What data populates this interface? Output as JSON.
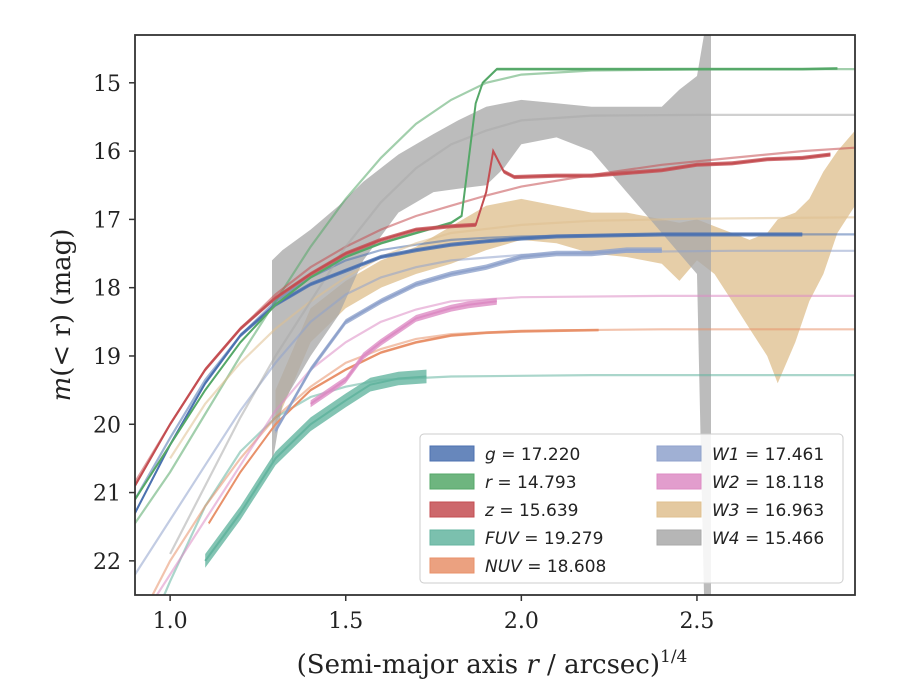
{
  "chart_data": {
    "type": "line",
    "title": "",
    "xlabel_main": "(Semi-major axis ",
    "xlabel_var": "r",
    "xlabel_rest": " / arcsec)",
    "xlabel_sup": "1/4",
    "ylabel_m": "m",
    "ylabel_arg": "(< r)",
    "ylabel_unit": " (mag)",
    "xlim": [
      0.9,
      2.95
    ],
    "ylim": [
      22.5,
      14.3
    ],
    "y_inverted": true,
    "xticks": [
      1.0,
      1.5,
      2.0,
      2.5
    ],
    "xtick_labels": [
      "1.0",
      "1.5",
      "2.0",
      "2.5"
    ],
    "yticks": [
      15,
      16,
      17,
      18,
      19,
      20,
      21,
      22
    ],
    "ytick_labels": [
      "15",
      "16",
      "17",
      "18",
      "19",
      "20",
      "21",
      "22"
    ],
    "grid": false,
    "legend_position": "lower-right",
    "series": [
      {
        "name": "g = 17.220",
        "var": "g",
        "value": "17.220",
        "color": "#4c72b0",
        "measured": [
          [
            0.9,
            21.3
          ],
          [
            1.0,
            20.3
          ],
          [
            1.1,
            19.4
          ],
          [
            1.2,
            18.7
          ],
          [
            1.3,
            18.25
          ],
          [
            1.4,
            17.95
          ],
          [
            1.5,
            17.75
          ],
          [
            1.6,
            17.55
          ],
          [
            1.7,
            17.45
          ],
          [
            1.8,
            17.37
          ],
          [
            1.9,
            17.32
          ],
          [
            2.0,
            17.28
          ],
          [
            2.1,
            17.25
          ],
          [
            2.2,
            17.24
          ],
          [
            2.3,
            17.23
          ],
          [
            2.4,
            17.22
          ],
          [
            2.5,
            17.22
          ],
          [
            2.6,
            17.22
          ],
          [
            2.7,
            17.22
          ],
          [
            2.8,
            17.22
          ]
        ],
        "measured_err": 0.03,
        "model": [
          [
            0.9,
            21.1
          ],
          [
            1.0,
            20.2
          ],
          [
            1.1,
            19.35
          ],
          [
            1.2,
            18.7
          ],
          [
            1.3,
            18.2
          ],
          [
            1.4,
            17.85
          ],
          [
            1.5,
            17.6
          ],
          [
            1.6,
            17.45
          ],
          [
            1.7,
            17.37
          ],
          [
            1.8,
            17.3
          ],
          [
            1.9,
            17.27
          ],
          [
            2.0,
            17.25
          ],
          [
            2.2,
            17.23
          ],
          [
            2.4,
            17.22
          ],
          [
            2.6,
            17.22
          ],
          [
            2.95,
            17.22
          ]
        ]
      },
      {
        "name": "r = 14.793",
        "var": "r",
        "value": "14.793",
        "color": "#55a868",
        "measured": [
          [
            0.9,
            21.1
          ],
          [
            1.0,
            20.3
          ],
          [
            1.1,
            19.5
          ],
          [
            1.2,
            18.8
          ],
          [
            1.3,
            18.25
          ],
          [
            1.4,
            17.85
          ],
          [
            1.5,
            17.55
          ],
          [
            1.6,
            17.35
          ],
          [
            1.7,
            17.2
          ],
          [
            1.8,
            17.05
          ],
          [
            1.83,
            16.95
          ],
          [
            1.87,
            15.3
          ],
          [
            1.89,
            15.0
          ],
          [
            1.93,
            14.8
          ],
          [
            2.0,
            14.8
          ],
          [
            2.2,
            14.8
          ],
          [
            2.4,
            14.8
          ],
          [
            2.6,
            14.8
          ],
          [
            2.8,
            14.8
          ],
          [
            2.9,
            14.79
          ]
        ],
        "measured_err": 0.02,
        "model": [
          [
            0.9,
            21.45
          ],
          [
            1.0,
            20.7
          ],
          [
            1.1,
            19.85
          ],
          [
            1.2,
            19.0
          ],
          [
            1.3,
            18.2
          ],
          [
            1.4,
            17.4
          ],
          [
            1.5,
            16.7
          ],
          [
            1.6,
            16.1
          ],
          [
            1.7,
            15.6
          ],
          [
            1.8,
            15.25
          ],
          [
            1.9,
            15.0
          ],
          [
            2.0,
            14.88
          ],
          [
            2.2,
            14.82
          ],
          [
            2.6,
            14.8
          ],
          [
            2.95,
            14.8
          ]
        ]
      },
      {
        "name": "z = 15.639",
        "var": "z",
        "value": "15.639",
        "color": "#c44e52",
        "measured": [
          [
            0.9,
            20.9
          ],
          [
            1.0,
            20.0
          ],
          [
            1.1,
            19.2
          ],
          [
            1.2,
            18.6
          ],
          [
            1.3,
            18.15
          ],
          [
            1.4,
            17.8
          ],
          [
            1.5,
            17.5
          ],
          [
            1.6,
            17.3
          ],
          [
            1.7,
            17.15
          ],
          [
            1.8,
            17.1
          ],
          [
            1.87,
            17.08
          ],
          [
            1.9,
            16.6
          ],
          [
            1.92,
            16.0
          ],
          [
            1.95,
            16.3
          ],
          [
            1.98,
            16.38
          ],
          [
            2.1,
            16.36
          ],
          [
            2.2,
            16.36
          ],
          [
            2.3,
            16.32
          ],
          [
            2.4,
            16.28
          ],
          [
            2.5,
            16.2
          ],
          [
            2.6,
            16.18
          ],
          [
            2.7,
            16.12
          ],
          [
            2.8,
            16.1
          ],
          [
            2.88,
            16.05
          ]
        ],
        "measured_err": 0.03,
        "model": [
          [
            0.9,
            20.85
          ],
          [
            1.0,
            20.0
          ],
          [
            1.1,
            19.2
          ],
          [
            1.2,
            18.6
          ],
          [
            1.3,
            18.1
          ],
          [
            1.4,
            17.7
          ],
          [
            1.5,
            17.4
          ],
          [
            1.6,
            17.15
          ],
          [
            1.7,
            16.95
          ],
          [
            1.8,
            16.8
          ],
          [
            1.9,
            16.65
          ],
          [
            2.0,
            16.52
          ],
          [
            2.2,
            16.35
          ],
          [
            2.4,
            16.2
          ],
          [
            2.6,
            16.1
          ],
          [
            2.8,
            16.0
          ],
          [
            2.95,
            15.95
          ]
        ]
      },
      {
        "name": "FUV = 19.279",
        "var": "FUV",
        "value": "19.279",
        "color": "#64b5a0",
        "measured": [
          [
            1.1,
            22.0
          ],
          [
            1.2,
            21.3
          ],
          [
            1.3,
            20.5
          ],
          [
            1.4,
            20.0
          ],
          [
            1.5,
            19.65
          ],
          [
            1.57,
            19.42
          ],
          [
            1.65,
            19.33
          ],
          [
            1.73,
            19.3
          ]
        ],
        "measured_err": 0.1,
        "model": [
          [
            0.9,
            23.5
          ],
          [
            1.0,
            22.3
          ],
          [
            1.1,
            21.2
          ],
          [
            1.2,
            20.4
          ],
          [
            1.3,
            19.9
          ],
          [
            1.4,
            19.6
          ],
          [
            1.5,
            19.45
          ],
          [
            1.6,
            19.35
          ],
          [
            1.8,
            19.3
          ],
          [
            2.2,
            19.28
          ],
          [
            2.95,
            19.28
          ]
        ]
      },
      {
        "name": "NUV = 18.608",
        "var": "NUV",
        "value": "18.608",
        "color": "#e8916a",
        "measured": [
          [
            1.11,
            21.45
          ],
          [
            1.2,
            20.7
          ],
          [
            1.3,
            20.0
          ],
          [
            1.4,
            19.5
          ],
          [
            1.5,
            19.2
          ],
          [
            1.6,
            18.95
          ],
          [
            1.7,
            18.8
          ],
          [
            1.8,
            18.7
          ],
          [
            1.9,
            18.66
          ],
          [
            2.0,
            18.64
          ],
          [
            2.1,
            18.63
          ],
          [
            2.22,
            18.62
          ]
        ],
        "measured_err": 0.02,
        "model": [
          [
            0.9,
            23.0
          ],
          [
            1.0,
            22.0
          ],
          [
            1.1,
            21.2
          ],
          [
            1.2,
            20.5
          ],
          [
            1.3,
            19.9
          ],
          [
            1.4,
            19.45
          ],
          [
            1.5,
            19.1
          ],
          [
            1.6,
            18.9
          ],
          [
            1.7,
            18.75
          ],
          [
            1.8,
            18.68
          ],
          [
            2.0,
            18.63
          ],
          [
            2.4,
            18.61
          ],
          [
            2.95,
            18.61
          ]
        ]
      },
      {
        "name": "W1 = 17.461",
        "var": "W1",
        "value": "17.461",
        "color": "#8fa2cc",
        "measured": [
          [
            1.3,
            20.1
          ],
          [
            1.4,
            19.2
          ],
          [
            1.5,
            18.5
          ],
          [
            1.6,
            18.2
          ],
          [
            1.7,
            17.95
          ],
          [
            1.8,
            17.8
          ],
          [
            1.9,
            17.7
          ],
          [
            2.0,
            17.55
          ],
          [
            2.1,
            17.5
          ],
          [
            2.2,
            17.5
          ],
          [
            2.3,
            17.45
          ],
          [
            2.4,
            17.45
          ]
        ],
        "measured_err": 0.04,
        "model": [
          [
            0.9,
            22.2
          ],
          [
            1.0,
            21.4
          ],
          [
            1.1,
            20.6
          ],
          [
            1.2,
            19.8
          ],
          [
            1.3,
            19.1
          ],
          [
            1.4,
            18.5
          ],
          [
            1.5,
            18.1
          ],
          [
            1.6,
            17.85
          ],
          [
            1.7,
            17.7
          ],
          [
            1.8,
            17.6
          ],
          [
            2.0,
            17.52
          ],
          [
            2.2,
            17.48
          ],
          [
            2.6,
            17.46
          ],
          [
            2.95,
            17.46
          ]
        ]
      },
      {
        "name": "W2 = 18.118",
        "var": "W2",
        "value": "18.118",
        "color": "#dd8cc4",
        "measured": [
          [
            1.4,
            19.7
          ],
          [
            1.5,
            19.35
          ],
          [
            1.55,
            19.0
          ],
          [
            1.6,
            18.8
          ],
          [
            1.7,
            18.45
          ],
          [
            1.8,
            18.3
          ],
          [
            1.85,
            18.25
          ],
          [
            1.93,
            18.2
          ]
        ],
        "measured_err": 0.05,
        "model": [
          [
            0.9,
            23.0
          ],
          [
            1.0,
            22.2
          ],
          [
            1.1,
            21.4
          ],
          [
            1.2,
            20.6
          ],
          [
            1.3,
            19.8
          ],
          [
            1.4,
            19.2
          ],
          [
            1.5,
            18.8
          ],
          [
            1.6,
            18.5
          ],
          [
            1.7,
            18.32
          ],
          [
            1.8,
            18.2
          ],
          [
            2.0,
            18.14
          ],
          [
            2.4,
            18.12
          ],
          [
            2.95,
            18.12
          ]
        ]
      },
      {
        "name": "W3 = 16.963",
        "var": "W3",
        "value": "16.963",
        "color": "#dfc08f",
        "band": [
          [
            1.3,
            20.0,
            19.5
          ],
          [
            1.4,
            18.8,
            18.3
          ],
          [
            1.5,
            18.3,
            17.9
          ],
          [
            1.6,
            18.0,
            17.6
          ],
          [
            1.7,
            17.8,
            17.4
          ],
          [
            1.8,
            17.65,
            17.1
          ],
          [
            1.9,
            17.45,
            16.8
          ],
          [
            2.0,
            17.3,
            16.7
          ],
          [
            2.1,
            17.35,
            16.8
          ],
          [
            2.2,
            17.5,
            16.9
          ],
          [
            2.3,
            17.55,
            16.9
          ],
          [
            2.35,
            17.6,
            16.95
          ],
          [
            2.4,
            17.65,
            17.0
          ],
          [
            2.45,
            17.9,
            17.05
          ],
          [
            2.5,
            17.6,
            17.0
          ],
          [
            2.55,
            17.8,
            17.1
          ],
          [
            2.6,
            18.2,
            17.2
          ],
          [
            2.65,
            18.6,
            17.3
          ],
          [
            2.7,
            19.0,
            17.2
          ],
          [
            2.73,
            19.4,
            17.0
          ],
          [
            2.78,
            18.8,
            16.9
          ],
          [
            2.82,
            18.2,
            16.7
          ],
          [
            2.86,
            17.8,
            16.3
          ],
          [
            2.9,
            17.2,
            16.0
          ],
          [
            2.95,
            16.8,
            15.7
          ]
        ],
        "model": [
          [
            1.0,
            20.5
          ],
          [
            1.1,
            19.7
          ],
          [
            1.2,
            19.1
          ],
          [
            1.3,
            18.6
          ],
          [
            1.4,
            18.2
          ],
          [
            1.5,
            17.85
          ],
          [
            1.6,
            17.55
          ],
          [
            1.7,
            17.35
          ],
          [
            1.8,
            17.2
          ],
          [
            2.0,
            17.08
          ],
          [
            2.2,
            17.02
          ],
          [
            2.5,
            16.99
          ],
          [
            2.95,
            16.97
          ]
        ]
      },
      {
        "name": "W4 = 15.466",
        "var": "W4",
        "value": "15.466",
        "color": "#a9a9a9",
        "band": [
          [
            1.29,
            20.6,
            17.6
          ],
          [
            1.32,
            19.7,
            17.45
          ],
          [
            1.4,
            19.0,
            17.15
          ],
          [
            1.48,
            18.4,
            16.8
          ],
          [
            1.55,
            17.6,
            16.45
          ],
          [
            1.65,
            16.9,
            16.05
          ],
          [
            1.75,
            16.6,
            15.75
          ],
          [
            1.82,
            16.55,
            15.55
          ],
          [
            1.9,
            16.5,
            15.35
          ],
          [
            1.95,
            16.25,
            15.3
          ],
          [
            2.0,
            15.9,
            15.25
          ],
          [
            2.1,
            15.8,
            15.3
          ],
          [
            2.2,
            16.0,
            15.35
          ],
          [
            2.3,
            16.6,
            15.35
          ],
          [
            2.4,
            17.2,
            15.35
          ],
          [
            2.45,
            17.5,
            15.1
          ],
          [
            2.5,
            17.8,
            14.9
          ],
          [
            2.52,
            22.5,
            14.3
          ],
          [
            2.54,
            22.5,
            14.3
          ]
        ],
        "model": [
          [
            1.0,
            21.9
          ],
          [
            1.1,
            20.9
          ],
          [
            1.2,
            19.9
          ],
          [
            1.3,
            19.0
          ],
          [
            1.4,
            18.2
          ],
          [
            1.5,
            17.4
          ],
          [
            1.6,
            16.75
          ],
          [
            1.7,
            16.25
          ],
          [
            1.8,
            15.9
          ],
          [
            1.9,
            15.7
          ],
          [
            2.0,
            15.55
          ],
          [
            2.2,
            15.48
          ],
          [
            2.5,
            15.47
          ],
          [
            2.95,
            15.47
          ]
        ]
      }
    ]
  }
}
